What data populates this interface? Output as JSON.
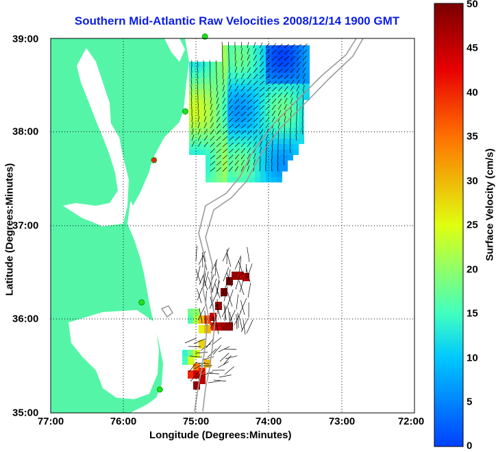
{
  "title": "Southern Mid-Atlantic Raw Velocities 2008/12/14 1900 GMT",
  "x_axis": {
    "label": "Longitude (Degrees:Minutes)",
    "ticks": [
      "77:00",
      "76:00",
      "75:00",
      "74:00",
      "73:00",
      "72:00"
    ]
  },
  "y_axis": {
    "label": "Latitude (Degrees:Minutes)",
    "ticks": [
      "39:00",
      "38:00",
      "37:00",
      "36:00",
      "35:00"
    ]
  },
  "colorbar": {
    "label": "Surface Velocity (cm/s)",
    "ticks": [
      "50",
      "45",
      "40",
      "35",
      "30",
      "25",
      "20",
      "15",
      "10",
      "5",
      "0"
    ],
    "range": [
      0,
      50
    ]
  },
  "colors": {
    "land": "#55f5a8",
    "water": "#ffffff",
    "title": "#0a1ee6",
    "bathymetry": "#9a9a9a",
    "station": "#22dd22",
    "station_alt": "#ee2222"
  },
  "map_extent": {
    "lon": [
      -77,
      -72
    ],
    "lat": [
      35,
      39
    ]
  },
  "grid": true,
  "stations": [
    {
      "lon": -74.88,
      "lat": 39.02,
      "color": "#22dd22"
    },
    {
      "lon": -75.15,
      "lat": 38.22,
      "color": "#22dd22"
    },
    {
      "lon": -75.58,
      "lat": 37.7,
      "color": "#ee2222"
    },
    {
      "lon": -75.75,
      "lat": 36.18,
      "color": "#22dd22"
    },
    {
      "lon": -75.5,
      "lat": 35.25,
      "color": "#22dd22"
    }
  ]
}
